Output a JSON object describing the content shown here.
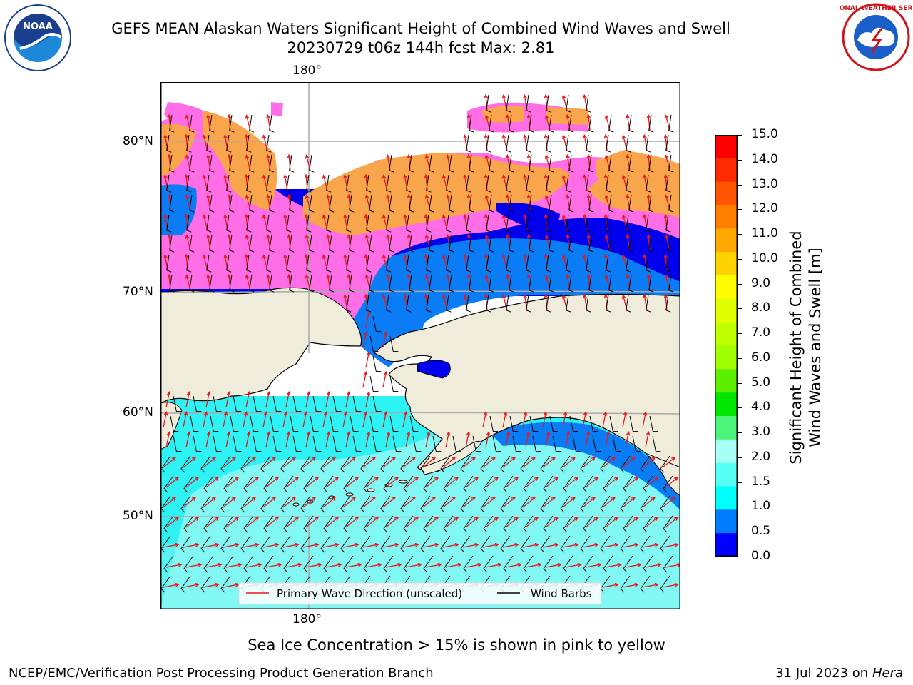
{
  "header": {
    "title_line1": "GEFS MEAN Alaskan Waters Significant Height of Combined Wind Waves and Swell",
    "title_line2": "20230729 t06z 144h fcst   Max: 2.81"
  },
  "logos": {
    "left": {
      "icon": "noaa-logo",
      "text": "NOAA"
    },
    "right": {
      "icon": "nws-logo",
      "text": "NATIONAL WEATHER SERVICE"
    }
  },
  "map": {
    "lon_label_top": "180°",
    "lon_label_bottom": "180°",
    "lat_labels": [
      "80°N",
      "70°N",
      "60°N",
      "50°N"
    ],
    "legend": {
      "wave_direction": "Primary Wave Direction (unscaled)",
      "wind_barbs": "Wind Barbs"
    },
    "colors": {
      "land": "#efecdc",
      "ice_pink": "#ff6ee6",
      "ice_orange": "#f9a54c",
      "arrow": "#e8171b"
    }
  },
  "colorbar": {
    "label": "Significant Height of Combined Wind Waves and Swell [m]",
    "label_line1": "Significant Height of Combined",
    "label_line2": "Wind Waves and Swell [m]",
    "ticks": [
      "15.0",
      "14.0",
      "13.0",
      "12.0",
      "11.0",
      "10.0",
      "9.0",
      "8.0",
      "7.0",
      "6.0",
      "5.0",
      "4.0",
      "3.0",
      "2.0",
      "1.5",
      "1.0",
      "0.5",
      "0.0"
    ],
    "bands_top_to_bottom": [
      "#ff0000",
      "#ff2a00",
      "#ff5400",
      "#ff7e00",
      "#ffa800",
      "#ffd200",
      "#fffc00",
      "#e0ff00",
      "#c0ff00",
      "#a0ff00",
      "#5cf000",
      "#00e600",
      "#4cf57a",
      "#a8fff4",
      "#55fff4",
      "#00ffff",
      "#007dff",
      "#0000ff"
    ]
  },
  "caption": "Sea Ice Concentration > 15% is shown in pink to yellow",
  "footer": {
    "left": "NCEP/EMC/Verification Post Processing Product Generation Branch",
    "right_prefix": "31 Jul 2023 on ",
    "right_host": "Hera"
  }
}
